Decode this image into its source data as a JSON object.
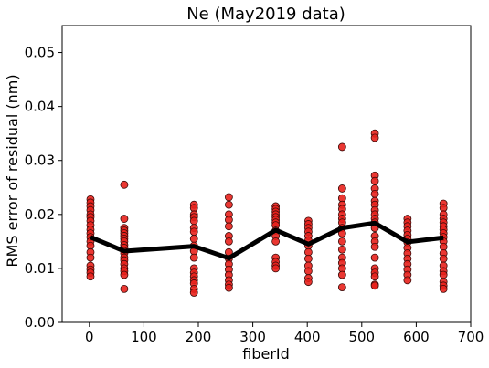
{
  "chart_data": {
    "type": "scatter",
    "title": "Ne (May2019 data)",
    "xlabel": "fiberId",
    "ylabel": "RMS error of residual (nm)",
    "xlim": [
      -50,
      700
    ],
    "ylim": [
      0.0,
      0.055
    ],
    "xticks": [
      0,
      100,
      200,
      300,
      400,
      500,
      600,
      700
    ],
    "yticks": [
      0.0,
      0.01,
      0.02,
      0.03,
      0.04,
      0.05
    ],
    "xtick_labels": [
      "0",
      "100",
      "200",
      "300",
      "400",
      "500",
      "600",
      "700"
    ],
    "ytick_labels": [
      "0.00",
      "0.01",
      "0.02",
      "0.03",
      "0.04",
      "0.05"
    ],
    "grid": false,
    "legend": "none",
    "colors": {
      "points": "#e8211c",
      "point_edge": "#3a0a08",
      "line": "#000000"
    },
    "series": [
      {
        "kind": "scatter",
        "points": [
          [
            2,
            0.0228
          ],
          [
            2,
            0.0222
          ],
          [
            2,
            0.0215
          ],
          [
            2,
            0.0208
          ],
          [
            2,
            0.02
          ],
          [
            2,
            0.0195
          ],
          [
            2,
            0.0188
          ],
          [
            2,
            0.018
          ],
          [
            2,
            0.0172
          ],
          [
            2,
            0.0165
          ],
          [
            2,
            0.0158
          ],
          [
            2,
            0.015
          ],
          [
            2,
            0.0142
          ],
          [
            2,
            0.013
          ],
          [
            2,
            0.012
          ],
          [
            2,
            0.0105
          ],
          [
            2,
            0.0098
          ],
          [
            2,
            0.0092
          ],
          [
            2,
            0.0085
          ],
          [
            64,
            0.0255
          ],
          [
            64,
            0.0192
          ],
          [
            64,
            0.0175
          ],
          [
            64,
            0.017
          ],
          [
            64,
            0.0165
          ],
          [
            64,
            0.016
          ],
          [
            64,
            0.0155
          ],
          [
            64,
            0.015
          ],
          [
            64,
            0.0143
          ],
          [
            64,
            0.0138
          ],
          [
            64,
            0.0132
          ],
          [
            64,
            0.0128
          ],
          [
            64,
            0.012
          ],
          [
            64,
            0.0115
          ],
          [
            64,
            0.0108
          ],
          [
            64,
            0.01
          ],
          [
            64,
            0.0095
          ],
          [
            64,
            0.0088
          ],
          [
            64,
            0.0062
          ],
          [
            192,
            0.0218
          ],
          [
            192,
            0.0212
          ],
          [
            192,
            0.02
          ],
          [
            192,
            0.0195
          ],
          [
            192,
            0.0188
          ],
          [
            192,
            0.0175
          ],
          [
            192,
            0.0168
          ],
          [
            192,
            0.0155
          ],
          [
            192,
            0.0142
          ],
          [
            192,
            0.0132
          ],
          [
            192,
            0.012
          ],
          [
            192,
            0.01
          ],
          [
            192,
            0.0092
          ],
          [
            192,
            0.0085
          ],
          [
            192,
            0.0078
          ],
          [
            192,
            0.0072
          ],
          [
            192,
            0.0062
          ],
          [
            192,
            0.0055
          ],
          [
            256,
            0.0232
          ],
          [
            256,
            0.0218
          ],
          [
            256,
            0.02
          ],
          [
            256,
            0.019
          ],
          [
            256,
            0.0178
          ],
          [
            256,
            0.016
          ],
          [
            256,
            0.015
          ],
          [
            256,
            0.013
          ],
          [
            256,
            0.0118
          ],
          [
            256,
            0.0108
          ],
          [
            256,
            0.0098
          ],
          [
            256,
            0.0088
          ],
          [
            256,
            0.0078
          ],
          [
            256,
            0.007
          ],
          [
            256,
            0.0064
          ],
          [
            342,
            0.0215
          ],
          [
            342,
            0.021
          ],
          [
            342,
            0.0205
          ],
          [
            342,
            0.02
          ],
          [
            342,
            0.0195
          ],
          [
            342,
            0.019
          ],
          [
            342,
            0.0185
          ],
          [
            342,
            0.018
          ],
          [
            342,
            0.017
          ],
          [
            342,
            0.016
          ],
          [
            342,
            0.015
          ],
          [
            342,
            0.012
          ],
          [
            342,
            0.0112
          ],
          [
            342,
            0.0105
          ],
          [
            342,
            0.01
          ],
          [
            402,
            0.0188
          ],
          [
            402,
            0.0182
          ],
          [
            402,
            0.0175
          ],
          [
            402,
            0.0168
          ],
          [
            402,
            0.016
          ],
          [
            402,
            0.0152
          ],
          [
            402,
            0.0142
          ],
          [
            402,
            0.013
          ],
          [
            402,
            0.0118
          ],
          [
            402,
            0.0105
          ],
          [
            402,
            0.0095
          ],
          [
            402,
            0.0082
          ],
          [
            402,
            0.0075
          ],
          [
            464,
            0.0325
          ],
          [
            464,
            0.0248
          ],
          [
            464,
            0.023
          ],
          [
            464,
            0.0218
          ],
          [
            464,
            0.021
          ],
          [
            464,
            0.02
          ],
          [
            464,
            0.0192
          ],
          [
            464,
            0.0185
          ],
          [
            464,
            0.0175
          ],
          [
            464,
            0.0165
          ],
          [
            464,
            0.015
          ],
          [
            464,
            0.0135
          ],
          [
            464,
            0.012
          ],
          [
            464,
            0.011
          ],
          [
            464,
            0.01
          ],
          [
            464,
            0.0088
          ],
          [
            464,
            0.0065
          ],
          [
            524,
            0.035
          ],
          [
            524,
            0.0342
          ],
          [
            524,
            0.0272
          ],
          [
            524,
            0.0262
          ],
          [
            524,
            0.0248
          ],
          [
            524,
            0.0238
          ],
          [
            524,
            0.0225
          ],
          [
            524,
            0.0218
          ],
          [
            524,
            0.0208
          ],
          [
            524,
            0.02
          ],
          [
            524,
            0.0192
          ],
          [
            524,
            0.0185
          ],
          [
            524,
            0.0175
          ],
          [
            524,
            0.016
          ],
          [
            524,
            0.015
          ],
          [
            524,
            0.014
          ],
          [
            524,
            0.012
          ],
          [
            524,
            0.01
          ],
          [
            524,
            0.0092
          ],
          [
            524,
            0.0085
          ],
          [
            524,
            0.007
          ],
          [
            524,
            0.0068
          ],
          [
            584,
            0.0192
          ],
          [
            584,
            0.0185
          ],
          [
            584,
            0.0178
          ],
          [
            584,
            0.017
          ],
          [
            584,
            0.0162
          ],
          [
            584,
            0.0155
          ],
          [
            584,
            0.0148
          ],
          [
            584,
            0.0138
          ],
          [
            584,
            0.0128
          ],
          [
            584,
            0.0118
          ],
          [
            584,
            0.0108
          ],
          [
            584,
            0.0098
          ],
          [
            584,
            0.0088
          ],
          [
            584,
            0.0078
          ],
          [
            650,
            0.022
          ],
          [
            650,
            0.0212
          ],
          [
            650,
            0.02
          ],
          [
            650,
            0.0192
          ],
          [
            650,
            0.0185
          ],
          [
            650,
            0.0178
          ],
          [
            650,
            0.0172
          ],
          [
            650,
            0.0165
          ],
          [
            650,
            0.0158
          ],
          [
            650,
            0.015
          ],
          [
            650,
            0.014
          ],
          [
            650,
            0.0128
          ],
          [
            650,
            0.0118
          ],
          [
            650,
            0.0105
          ],
          [
            650,
            0.0095
          ],
          [
            650,
            0.0088
          ],
          [
            650,
            0.0075
          ],
          [
            650,
            0.0068
          ],
          [
            650,
            0.0062
          ]
        ]
      },
      {
        "kind": "line",
        "points": [
          [
            2,
            0.0158
          ],
          [
            64,
            0.0132
          ],
          [
            192,
            0.0141
          ],
          [
            256,
            0.0119
          ],
          [
            342,
            0.0171
          ],
          [
            402,
            0.0145
          ],
          [
            464,
            0.0175
          ],
          [
            524,
            0.0184
          ],
          [
            584,
            0.0149
          ],
          [
            650,
            0.0157
          ]
        ]
      }
    ]
  }
}
